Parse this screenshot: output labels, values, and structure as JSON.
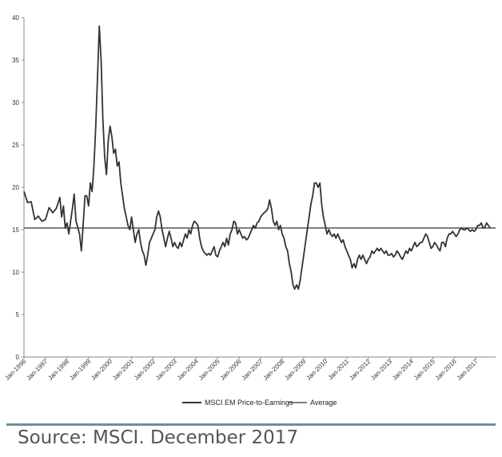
{
  "chart_data": {
    "type": "line",
    "title": "",
    "xlabel": "",
    "ylabel": "",
    "ylim": [
      0,
      40
    ],
    "yticks": [
      0,
      5,
      10,
      15,
      20,
      25,
      30,
      35,
      40
    ],
    "xlim": [
      "1996-01",
      "2017-12"
    ],
    "xticks": [
      "Jan-1996",
      "Jan-1997",
      "Jan-1998",
      "Jan-1999",
      "Jan-2000",
      "Jan-2001",
      "Jan-2002",
      "Jan-2003",
      "Jan-2004",
      "Jan-2005",
      "Jan-2006",
      "Jan-2007",
      "Jan-2008",
      "Jan-2009",
      "Jan-2010",
      "Jan-2011",
      "Jan-2012",
      "Jan-2013",
      "Jan-2014",
      "Jan-2015",
      "Jan-2016",
      "Jan-2017"
    ],
    "grid": false,
    "legend_position": "bottom",
    "colors": {
      "pe_line": "#333333",
      "average_line": "#555555"
    },
    "series": [
      {
        "name": "MSCI EM Price-to-Earnings",
        "points": [
          [
            "1996-01",
            19.5
          ],
          [
            "1996-03",
            18.2
          ],
          [
            "1996-05",
            18.3
          ],
          [
            "1996-07",
            16.2
          ],
          [
            "1996-09",
            16.6
          ],
          [
            "1996-11",
            16.0
          ],
          [
            "1997-01",
            16.2
          ],
          [
            "1997-03",
            17.6
          ],
          [
            "1997-05",
            17.0
          ],
          [
            "1997-07",
            17.5
          ],
          [
            "1997-09",
            18.8
          ],
          [
            "1997-10",
            16.5
          ],
          [
            "1997-11",
            17.8
          ],
          [
            "1997-12",
            15.2
          ],
          [
            "1998-01",
            15.8
          ],
          [
            "1998-02",
            14.5
          ],
          [
            "1998-04",
            17.5
          ],
          [
            "1998-05",
            19.2
          ],
          [
            "1998-06",
            16.0
          ],
          [
            "1998-08",
            14.5
          ],
          [
            "1998-09",
            12.5
          ],
          [
            "1998-10",
            15.5
          ],
          [
            "1998-11",
            19.0
          ],
          [
            "1998-12",
            19.0
          ],
          [
            "1999-01",
            17.8
          ],
          [
            "1999-02",
            20.5
          ],
          [
            "1999-03",
            19.5
          ],
          [
            "1999-04",
            22.5
          ],
          [
            "1999-05",
            27.0
          ],
          [
            "1999-06",
            33.0
          ],
          [
            "1999-07",
            39.0
          ],
          [
            "1999-08",
            35.0
          ],
          [
            "1999-09",
            28.0
          ],
          [
            "1999-10",
            23.5
          ],
          [
            "1999-11",
            21.5
          ],
          [
            "1999-12",
            25.5
          ],
          [
            "2000-01",
            27.2
          ],
          [
            "2000-02",
            26.0
          ],
          [
            "2000-03",
            24.0
          ],
          [
            "2000-04",
            24.5
          ],
          [
            "2000-05",
            22.5
          ],
          [
            "2000-06",
            23.0
          ],
          [
            "2000-07",
            20.5
          ],
          [
            "2000-08",
            19.0
          ],
          [
            "2000-09",
            17.5
          ],
          [
            "2000-10",
            16.5
          ],
          [
            "2000-11",
            15.5
          ],
          [
            "2000-12",
            15.0
          ],
          [
            "2001-01",
            16.5
          ],
          [
            "2001-02",
            15.0
          ],
          [
            "2001-03",
            13.5
          ],
          [
            "2001-04",
            14.5
          ],
          [
            "2001-05",
            15.0
          ],
          [
            "2001-06",
            13.5
          ],
          [
            "2001-07",
            12.5
          ],
          [
            "2001-08",
            12.0
          ],
          [
            "2001-09",
            10.8
          ],
          [
            "2001-10",
            12.0
          ],
          [
            "2001-11",
            13.5
          ],
          [
            "2001-12",
            14.0
          ],
          [
            "2002-01",
            14.5
          ],
          [
            "2002-02",
            15.0
          ],
          [
            "2002-03",
            16.5
          ],
          [
            "2002-04",
            17.2
          ],
          [
            "2002-05",
            16.5
          ],
          [
            "2002-06",
            15.0
          ],
          [
            "2002-07",
            14.0
          ],
          [
            "2002-08",
            13.0
          ],
          [
            "2002-09",
            14.0
          ],
          [
            "2002-10",
            14.8
          ],
          [
            "2002-11",
            14.0
          ],
          [
            "2002-12",
            13.0
          ],
          [
            "2003-01",
            13.5
          ],
          [
            "2003-02",
            13.0
          ],
          [
            "2003-03",
            12.8
          ],
          [
            "2003-04",
            13.5
          ],
          [
            "2003-05",
            13.0
          ],
          [
            "2003-06",
            13.8
          ],
          [
            "2003-07",
            14.5
          ],
          [
            "2003-08",
            14.0
          ],
          [
            "2003-09",
            15.0
          ],
          [
            "2003-10",
            14.5
          ],
          [
            "2003-11",
            15.5
          ],
          [
            "2003-12",
            16.0
          ],
          [
            "2004-01",
            15.8
          ],
          [
            "2004-02",
            15.5
          ],
          [
            "2004-03",
            14.0
          ],
          [
            "2004-04",
            13.0
          ],
          [
            "2004-05",
            12.5
          ],
          [
            "2004-06",
            12.2
          ],
          [
            "2004-07",
            12.0
          ],
          [
            "2004-08",
            12.2
          ],
          [
            "2004-09",
            12.0
          ],
          [
            "2004-10",
            12.5
          ],
          [
            "2004-11",
            13.0
          ],
          [
            "2004-12",
            12.0
          ],
          [
            "2005-01",
            11.8
          ],
          [
            "2005-02",
            12.5
          ],
          [
            "2005-03",
            13.0
          ],
          [
            "2005-04",
            13.5
          ],
          [
            "2005-05",
            13.0
          ],
          [
            "2005-06",
            14.0
          ],
          [
            "2005-07",
            13.2
          ],
          [
            "2005-08",
            14.5
          ],
          [
            "2005-09",
            15.0
          ],
          [
            "2005-10",
            16.0
          ],
          [
            "2005-11",
            15.8
          ],
          [
            "2005-12",
            14.5
          ],
          [
            "2006-01",
            15.0
          ],
          [
            "2006-02",
            14.5
          ],
          [
            "2006-03",
            14.0
          ],
          [
            "2006-04",
            14.2
          ],
          [
            "2006-05",
            13.8
          ],
          [
            "2006-06",
            14.0
          ],
          [
            "2006-07",
            14.5
          ],
          [
            "2006-08",
            15.0
          ],
          [
            "2006-09",
            15.5
          ],
          [
            "2006-10",
            15.2
          ],
          [
            "2006-11",
            15.8
          ],
          [
            "2006-12",
            16.0
          ],
          [
            "2007-01",
            16.5
          ],
          [
            "2007-02",
            16.8
          ],
          [
            "2007-03",
            17.0
          ],
          [
            "2007-04",
            17.2
          ],
          [
            "2007-05",
            17.5
          ],
          [
            "2007-06",
            18.5
          ],
          [
            "2007-07",
            17.5
          ],
          [
            "2007-08",
            16.0
          ],
          [
            "2007-09",
            15.5
          ],
          [
            "2007-10",
            16.0
          ],
          [
            "2007-11",
            15.0
          ],
          [
            "2007-12",
            15.5
          ],
          [
            "2008-01",
            14.5
          ],
          [
            "2008-02",
            14.0
          ],
          [
            "2008-03",
            13.0
          ],
          [
            "2008-04",
            12.5
          ],
          [
            "2008-05",
            11.0
          ],
          [
            "2008-06",
            10.0
          ],
          [
            "2008-07",
            8.5
          ],
          [
            "2008-08",
            8.0
          ],
          [
            "2008-09",
            8.5
          ],
          [
            "2008-10",
            8.0
          ],
          [
            "2008-11",
            9.0
          ],
          [
            "2008-12",
            10.5
          ],
          [
            "2009-01",
            12.0
          ],
          [
            "2009-02",
            13.5
          ],
          [
            "2009-03",
            15.0
          ],
          [
            "2009-04",
            16.5
          ],
          [
            "2009-05",
            18.0
          ],
          [
            "2009-06",
            19.0
          ],
          [
            "2009-07",
            20.5
          ],
          [
            "2009-08",
            20.5
          ],
          [
            "2009-09",
            20.0
          ],
          [
            "2009-10",
            20.5
          ],
          [
            "2009-11",
            18.0
          ],
          [
            "2009-12",
            16.5
          ],
          [
            "2010-01",
            15.5
          ],
          [
            "2010-02",
            14.5
          ],
          [
            "2010-03",
            15.0
          ],
          [
            "2010-04",
            14.5
          ],
          [
            "2010-05",
            14.2
          ],
          [
            "2010-06",
            14.5
          ],
          [
            "2010-07",
            14.0
          ],
          [
            "2010-08",
            14.5
          ],
          [
            "2010-09",
            14.0
          ],
          [
            "2010-10",
            13.5
          ],
          [
            "2010-11",
            13.8
          ],
          [
            "2010-12",
            13.0
          ],
          [
            "2011-01",
            12.5
          ],
          [
            "2011-02",
            12.0
          ],
          [
            "2011-03",
            11.5
          ],
          [
            "2011-04",
            10.5
          ],
          [
            "2011-05",
            11.0
          ],
          [
            "2011-06",
            10.5
          ],
          [
            "2011-07",
            11.5
          ],
          [
            "2011-08",
            12.0
          ],
          [
            "2011-09",
            11.5
          ],
          [
            "2011-10",
            12.0
          ],
          [
            "2011-11",
            11.5
          ],
          [
            "2011-12",
            11.0
          ],
          [
            "2012-01",
            11.5
          ],
          [
            "2012-02",
            11.8
          ],
          [
            "2012-03",
            12.5
          ],
          [
            "2012-04",
            12.2
          ],
          [
            "2012-05",
            12.5
          ],
          [
            "2012-06",
            12.8
          ],
          [
            "2012-07",
            12.5
          ],
          [
            "2012-08",
            12.8
          ],
          [
            "2012-09",
            12.5
          ],
          [
            "2012-10",
            12.2
          ],
          [
            "2012-11",
            12.5
          ],
          [
            "2012-12",
            12.0
          ],
          [
            "2013-01",
            12.0
          ],
          [
            "2013-02",
            12.2
          ],
          [
            "2013-03",
            11.8
          ],
          [
            "2013-04",
            12.0
          ],
          [
            "2013-05",
            12.5
          ],
          [
            "2013-06",
            12.2
          ],
          [
            "2013-07",
            11.8
          ],
          [
            "2013-08",
            11.5
          ],
          [
            "2013-09",
            12.0
          ],
          [
            "2013-10",
            12.5
          ],
          [
            "2013-11",
            12.2
          ],
          [
            "2013-12",
            12.8
          ],
          [
            "2014-01",
            12.5
          ],
          [
            "2014-02",
            13.0
          ],
          [
            "2014-03",
            13.5
          ],
          [
            "2014-04",
            13.0
          ],
          [
            "2014-05",
            13.2
          ],
          [
            "2014-06",
            13.5
          ],
          [
            "2014-07",
            13.5
          ],
          [
            "2014-08",
            14.0
          ],
          [
            "2014-09",
            14.5
          ],
          [
            "2014-10",
            14.2
          ],
          [
            "2014-11",
            13.5
          ],
          [
            "2014-12",
            12.8
          ],
          [
            "2015-01",
            13.0
          ],
          [
            "2015-02",
            13.5
          ],
          [
            "2015-03",
            13.2
          ],
          [
            "2015-04",
            12.8
          ],
          [
            "2015-05",
            12.5
          ],
          [
            "2015-06",
            13.5
          ],
          [
            "2015-07",
            13.5
          ],
          [
            "2015-08",
            13.0
          ],
          [
            "2015-09",
            14.0
          ],
          [
            "2015-10",
            14.5
          ],
          [
            "2015-11",
            14.5
          ],
          [
            "2015-12",
            14.8
          ],
          [
            "2016-01",
            14.5
          ],
          [
            "2016-02",
            14.2
          ],
          [
            "2016-03",
            14.5
          ],
          [
            "2016-04",
            15.0
          ],
          [
            "2016-05",
            15.2
          ],
          [
            "2016-06",
            15.0
          ],
          [
            "2016-07",
            15.0
          ],
          [
            "2016-08",
            15.2
          ],
          [
            "2016-09",
            15.0
          ],
          [
            "2016-10",
            14.8
          ],
          [
            "2016-11",
            15.0
          ],
          [
            "2016-12",
            14.8
          ],
          [
            "2017-01",
            15.0
          ],
          [
            "2017-02",
            15.5
          ],
          [
            "2017-03",
            15.5
          ],
          [
            "2017-04",
            15.8
          ],
          [
            "2017-05",
            15.2
          ],
          [
            "2017-06",
            15.3
          ],
          [
            "2017-07",
            15.8
          ],
          [
            "2017-08",
            15.5
          ],
          [
            "2017-09",
            15.2
          ]
        ]
      },
      {
        "name": "Average",
        "constant": 15.2
      }
    ]
  },
  "source": "Source: MSCI. December 2017"
}
